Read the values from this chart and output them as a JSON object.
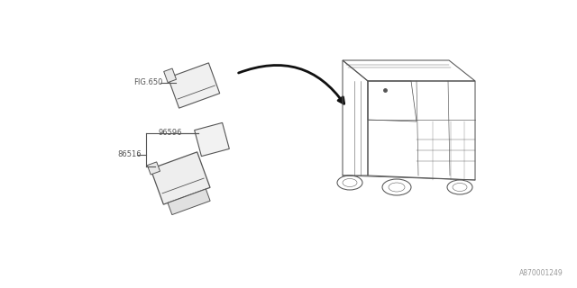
{
  "background_color": "#ffffff",
  "fig_width": 6.4,
  "fig_height": 3.2,
  "diagram_id": "A870001249",
  "line_color": "#555555",
  "text_color": "#555555",
  "arrow_color": "#111111",
  "label_fig650": "FIG.650",
  "label_96596": "96596",
  "label_86516": "86516",
  "font_size": 6.0
}
